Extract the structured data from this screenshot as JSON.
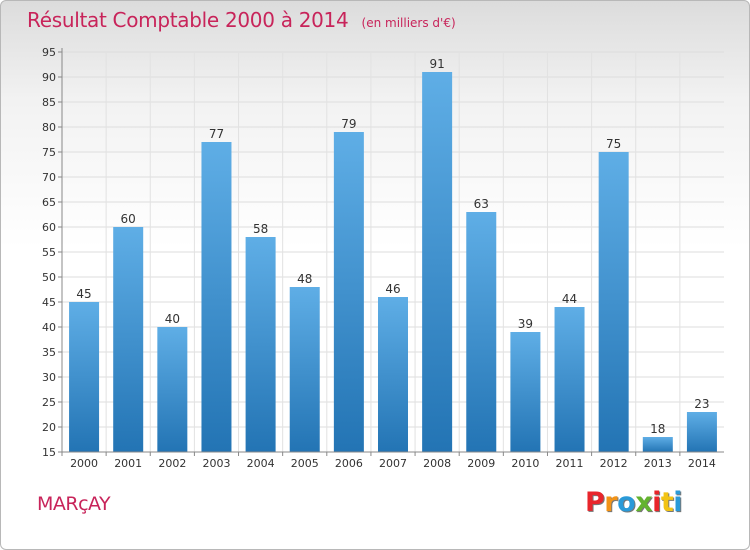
{
  "title": "Résultat Comptable 2000 à 2014",
  "unit": "(en milliers d'€)",
  "commune": "MARçAY",
  "logo": {
    "text": "Proxiti",
    "letters": [
      {
        "ch": "P",
        "color": "#e8252b"
      },
      {
        "ch": "r",
        "color": "#f29317"
      },
      {
        "ch": "o",
        "color": "#2a9ad8"
      },
      {
        "ch": "x",
        "color": "#63b32e"
      },
      {
        "ch": "i",
        "color": "#e8252b"
      },
      {
        "ch": "t",
        "color": "#f2c314"
      },
      {
        "ch": "i",
        "color": "#2a9ad8"
      }
    ]
  },
  "colors": {
    "bar_top": "#5faee6",
    "bar_bottom": "#2374b4",
    "accent": "#c8245a"
  },
  "chart_data": {
    "type": "bar",
    "title": "Résultat Comptable 2000 à 2014",
    "subtitle": "(en milliers d'€)",
    "xlabel": "",
    "ylabel": "",
    "categories": [
      "2000",
      "2001",
      "2002",
      "2003",
      "2004",
      "2005",
      "2006",
      "2007",
      "2008",
      "2009",
      "2010",
      "2011",
      "2012",
      "2013",
      "2014"
    ],
    "values": [
      45,
      60,
      40,
      77,
      58,
      48,
      79,
      46,
      91,
      63,
      39,
      44,
      75,
      18,
      23
    ],
    "ylim": [
      15,
      95
    ],
    "yticks": [
      15,
      20,
      25,
      30,
      35,
      40,
      45,
      50,
      55,
      60,
      65,
      70,
      75,
      80,
      85,
      90,
      95
    ],
    "grid": true
  }
}
